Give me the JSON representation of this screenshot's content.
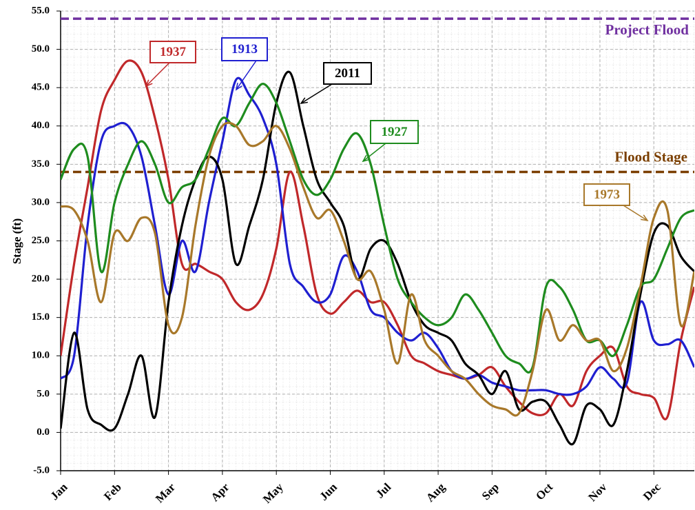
{
  "chart_data": {
    "type": "line",
    "y_label": "Stage (ft)",
    "categories": [
      "Jan",
      null,
      null,
      null,
      "Feb",
      null,
      null,
      null,
      "Mar",
      null,
      null,
      null,
      "Apr",
      null,
      null,
      null,
      "May",
      null,
      null,
      null,
      "Jun",
      null,
      null,
      null,
      "Jul",
      null,
      null,
      null,
      "Aug",
      null,
      null,
      null,
      "Sep",
      null,
      null,
      null,
      "Oct",
      null,
      null,
      null,
      "Nov",
      null,
      null,
      null,
      "Dec",
      null,
      null,
      null
    ],
    "series": [
      {
        "name": "1937",
        "color": "#c0282a",
        "values": [
          10,
          22,
          32,
          42,
          46,
          48.5,
          47,
          41,
          33,
          22,
          22,
          21,
          20,
          17,
          16,
          18,
          24,
          34,
          27,
          18,
          15.5,
          17,
          18.5,
          17,
          17,
          14,
          10,
          9,
          8,
          7.5,
          7,
          7.5,
          8.5,
          6,
          4,
          2.5,
          2.5,
          5,
          3.5,
          8,
          10,
          11,
          6,
          5,
          4.5,
          2,
          12,
          19
        ]
      },
      {
        "name": "1913",
        "color": "#1f1fd0",
        "values": [
          7,
          10,
          27,
          38,
          40,
          40,
          36,
          27,
          18,
          25,
          21,
          30,
          38,
          46,
          44,
          41,
          35,
          22,
          19,
          17,
          18,
          23,
          21,
          16,
          15,
          13,
          12,
          13,
          11,
          8,
          7,
          7.5,
          6.5,
          6,
          5.5,
          5.5,
          5.5,
          5,
          5,
          6,
          8.5,
          7,
          6.5,
          17,
          12,
          11.5,
          12,
          8.5
        ]
      },
      {
        "name": "2011",
        "color": "#000000",
        "values": [
          0.5,
          13,
          3,
          1,
          0.5,
          5,
          10,
          2,
          17,
          27,
          33,
          36,
          33,
          22,
          27,
          33,
          43,
          47,
          40,
          33,
          30,
          27,
          20,
          24,
          25,
          22,
          17,
          14,
          13,
          12,
          9,
          7.5,
          5,
          8,
          3,
          4,
          4,
          1,
          -1.5,
          3.5,
          3,
          1,
          8,
          18,
          26,
          27,
          23,
          21
        ]
      },
      {
        "name": "1927",
        "color": "#1e8c1e",
        "values": [
          33,
          37,
          36,
          21,
          30,
          35,
          38,
          35,
          30,
          32,
          33,
          37,
          41,
          40,
          43,
          45.5,
          43,
          38,
          33,
          31,
          33,
          37,
          39,
          35,
          27,
          20,
          17,
          15,
          14,
          15,
          18,
          16,
          13,
          10,
          9,
          8.5,
          19,
          19,
          16,
          12,
          12,
          10,
          14,
          19,
          20,
          24,
          28,
          29
        ]
      },
      {
        "name": "1973",
        "color": "#a8782a",
        "values": [
          29.5,
          29,
          25,
          17,
          26,
          25,
          28,
          26,
          14,
          15,
          27,
          36,
          40,
          40,
          37.5,
          38,
          40,
          37,
          32,
          28,
          29,
          25,
          20,
          21,
          16,
          9,
          18,
          12,
          10,
          8,
          7,
          5,
          3.5,
          3,
          2.5,
          8,
          16,
          12,
          14,
          12,
          12,
          8,
          11,
          19,
          28,
          29,
          14,
          21
        ]
      }
    ],
    "reference_lines": [
      {
        "label": "Project Flood",
        "value": 54,
        "color": "#7030a0"
      },
      {
        "label": "Flood Stage",
        "value": 34,
        "color": "#7b3f00"
      }
    ],
    "ylim": [
      -5,
      55
    ],
    "yticks": [
      {
        "value": -5,
        "label": "-5.0"
      },
      {
        "value": 0,
        "label": "0.0"
      },
      {
        "value": 5,
        "label": "5.0"
      },
      {
        "value": 10,
        "label": "10.0"
      },
      {
        "value": 15,
        "label": "15.0"
      },
      {
        "value": 20,
        "label": "20.0"
      },
      {
        "value": 25,
        "label": "25.0"
      },
      {
        "value": 30,
        "label": "30.0"
      },
      {
        "value": 35,
        "label": "35.0"
      },
      {
        "value": 40,
        "label": "40.0"
      },
      {
        "value": 45,
        "label": "45.0"
      },
      {
        "value": 50,
        "label": "50.0"
      },
      {
        "value": 55,
        "label": "55.0"
      }
    ],
    "grid": true
  }
}
